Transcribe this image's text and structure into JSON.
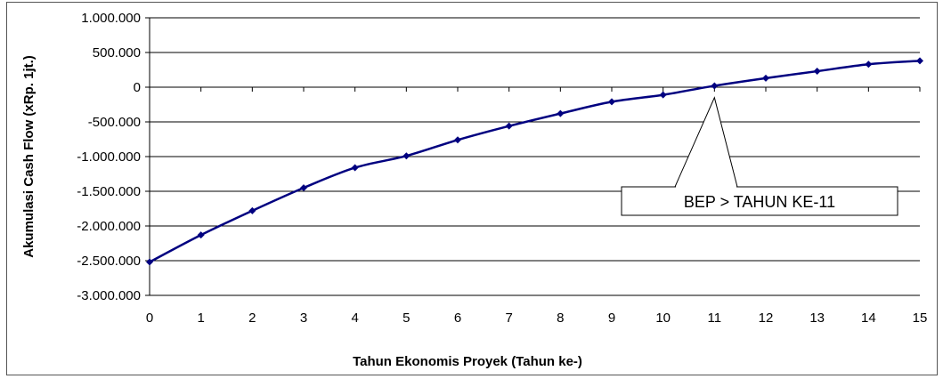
{
  "chart_data": {
    "type": "line",
    "title": "",
    "xlabel": "Tahun Ekonomis Proyek (Tahun ke-)",
    "ylabel": "Akumulasi Cash Flow (xRp. 1jt.)",
    "x": [
      0,
      1,
      2,
      3,
      4,
      5,
      6,
      7,
      8,
      9,
      10,
      11,
      12,
      13,
      14,
      15
    ],
    "series": [
      {
        "values": [
          -2520000,
          -2130000,
          -1780000,
          -1450000,
          -1160000,
          -990000,
          -760000,
          -560000,
          -380000,
          -210000,
          -110000,
          20000,
          130000,
          230000,
          330000,
          380000
        ]
      }
    ],
    "xlim": [
      0,
      15
    ],
    "ylim": [
      -3000000,
      1000000
    ],
    "y_ticks": [
      1000000,
      500000,
      0,
      -500000,
      -1000000,
      -1500000,
      -2000000,
      -2500000,
      -3000000
    ],
    "y_tick_labels": [
      "1.000.000",
      "500.000",
      "0",
      "-500.000",
      "-1.000.000",
      "-1.500.000",
      "-2.000.000",
      "-2.500.000",
      "-3.000.000"
    ],
    "x_tick_labels": [
      "0",
      "1",
      "2",
      "3",
      "4",
      "5",
      "6",
      "7",
      "8",
      "9",
      "10",
      "11",
      "12",
      "13",
      "14",
      "15"
    ],
    "grid": true,
    "legend": "none",
    "line_color": "#000080",
    "annotation": {
      "text": "BEP > TAHUN KE-11",
      "points_to": {
        "x": 11,
        "y": -150000
      }
    }
  }
}
